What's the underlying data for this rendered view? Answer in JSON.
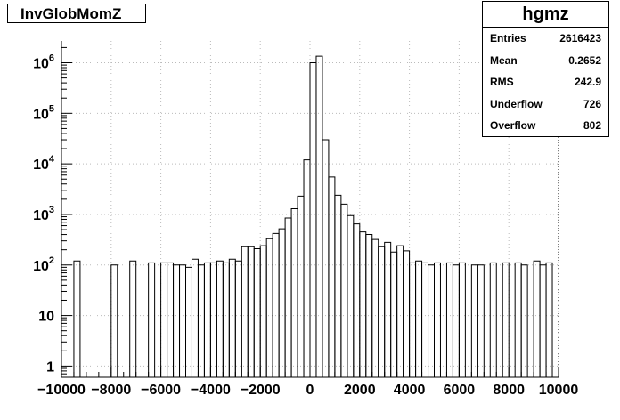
{
  "title": "InvGlobMomZ",
  "stats": {
    "name": "hgmz",
    "rows": [
      {
        "label": "Entries",
        "value": "2616423"
      },
      {
        "label": "Mean",
        "value": "0.2652"
      },
      {
        "label": "RMS",
        "value": "242.9"
      },
      {
        "label": "Underflow",
        "value": "726"
      },
      {
        "label": "Overflow",
        "value": "802"
      }
    ]
  },
  "chart_data": {
    "type": "histogram",
    "title": "InvGlobMomZ",
    "xlabel": "",
    "ylabel": "",
    "xlim": [
      -10000,
      10000
    ],
    "ylim": [
      0.6,
      2700000
    ],
    "log_y": true,
    "grid": true,
    "bin_width": 250,
    "x_ticks": [
      {
        "value": -10000,
        "label": "−10000"
      },
      {
        "value": -8000,
        "label": "−8000"
      },
      {
        "value": -6000,
        "label": "−6000"
      },
      {
        "value": -4000,
        "label": "−4000"
      },
      {
        "value": -2000,
        "label": "−2000"
      },
      {
        "value": 0,
        "label": "0"
      },
      {
        "value": 2000,
        "label": "2000"
      },
      {
        "value": 4000,
        "label": "4000"
      },
      {
        "value": 6000,
        "label": "6000"
      },
      {
        "value": 8000,
        "label": "8000"
      },
      {
        "value": 10000,
        "label": "10000"
      }
    ],
    "y_ticks": [
      {
        "value": 1,
        "base": "1",
        "exp": ""
      },
      {
        "value": 10,
        "base": "10",
        "exp": ""
      },
      {
        "value": 100,
        "base": "10",
        "exp": "2"
      },
      {
        "value": 1000,
        "base": "10",
        "exp": "3"
      },
      {
        "value": 10000,
        "base": "10",
        "exp": "4"
      },
      {
        "value": 100000,
        "base": "10",
        "exp": "5"
      },
      {
        "value": 1000000,
        "base": "10",
        "exp": "6"
      }
    ],
    "bins": [
      {
        "x": -9500,
        "y": 120
      },
      {
        "x": -8000,
        "y": 100
      },
      {
        "x": -7250,
        "y": 120
      },
      {
        "x": -6500,
        "y": 110
      },
      {
        "x": -6000,
        "y": 110
      },
      {
        "x": -5750,
        "y": 110
      },
      {
        "x": -5500,
        "y": 100
      },
      {
        "x": -5250,
        "y": 100
      },
      {
        "x": -5000,
        "y": 90
      },
      {
        "x": -4750,
        "y": 130
      },
      {
        "x": -4500,
        "y": 100
      },
      {
        "x": -4250,
        "y": 110
      },
      {
        "x": -4000,
        "y": 110
      },
      {
        "x": -3750,
        "y": 120
      },
      {
        "x": -3500,
        "y": 110
      },
      {
        "x": -3250,
        "y": 130
      },
      {
        "x": -3000,
        "y": 120
      },
      {
        "x": -2750,
        "y": 230
      },
      {
        "x": -2500,
        "y": 230
      },
      {
        "x": -2250,
        "y": 210
      },
      {
        "x": -2000,
        "y": 240
      },
      {
        "x": -1750,
        "y": 330
      },
      {
        "x": -1500,
        "y": 420
      },
      {
        "x": -1250,
        "y": 520
      },
      {
        "x": -1000,
        "y": 850
      },
      {
        "x": -750,
        "y": 1300
      },
      {
        "x": -500,
        "y": 2300
      },
      {
        "x": -250,
        "y": 12000
      },
      {
        "x": 0,
        "y": 1000000
      },
      {
        "x": 250,
        "y": 1350000
      },
      {
        "x": 500,
        "y": 30000
      },
      {
        "x": 750,
        "y": 5500
      },
      {
        "x": 1000,
        "y": 2400
      },
      {
        "x": 1250,
        "y": 1600
      },
      {
        "x": 1500,
        "y": 950
      },
      {
        "x": 1750,
        "y": 650
      },
      {
        "x": 2000,
        "y": 450
      },
      {
        "x": 2250,
        "y": 400
      },
      {
        "x": 2500,
        "y": 320
      },
      {
        "x": 2750,
        "y": 230
      },
      {
        "x": 3000,
        "y": 280
      },
      {
        "x": 3250,
        "y": 180
      },
      {
        "x": 3500,
        "y": 240
      },
      {
        "x": 3750,
        "y": 190
      },
      {
        "x": 4000,
        "y": 110
      },
      {
        "x": 4250,
        "y": 120
      },
      {
        "x": 4500,
        "y": 110
      },
      {
        "x": 4750,
        "y": 100
      },
      {
        "x": 5000,
        "y": 110
      },
      {
        "x": 5500,
        "y": 110
      },
      {
        "x": 5750,
        "y": 100
      },
      {
        "x": 6000,
        "y": 110
      },
      {
        "x": 6500,
        "y": 100
      },
      {
        "x": 6750,
        "y": 100
      },
      {
        "x": 7250,
        "y": 110
      },
      {
        "x": 7750,
        "y": 110
      },
      {
        "x": 8250,
        "y": 110
      },
      {
        "x": 8500,
        "y": 100
      },
      {
        "x": 9000,
        "y": 120
      },
      {
        "x": 9250,
        "y": 100
      },
      {
        "x": 9500,
        "y": 110
      }
    ]
  }
}
